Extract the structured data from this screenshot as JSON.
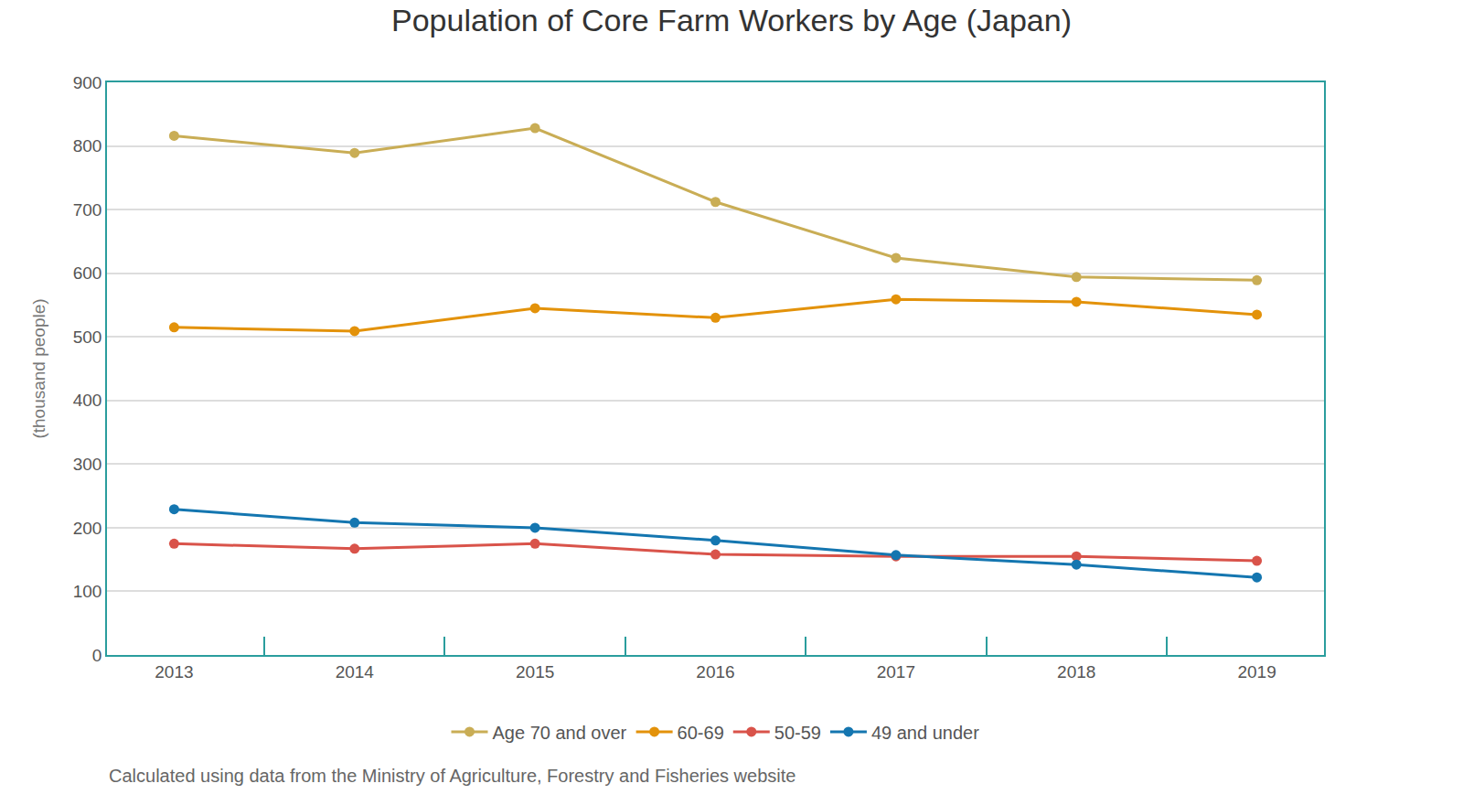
{
  "chart_data": {
    "type": "line",
    "title": "Population of Core Farm Workers by Age (Japan)",
    "y_label": "(thousand people)",
    "source": "Calculated using data from the Ministry of Agriculture, Forestry and Fisheries website",
    "categories": [
      "2013",
      "2014",
      "2015",
      "2016",
      "2017",
      "2018",
      "2019"
    ],
    "series": [
      {
        "name": "Age 70 and over",
        "color": "#c9ad55",
        "values": [
          816,
          789,
          828,
          712,
          624,
          594,
          589
        ]
      },
      {
        "name": "60-69",
        "color": "#e3920a",
        "values": [
          515,
          509,
          545,
          530,
          559,
          555,
          535
        ]
      },
      {
        "name": "50-59",
        "color": "#d9534a",
        "values": [
          175,
          167,
          175,
          158,
          155,
          155,
          148
        ]
      },
      {
        "name": "49 and under",
        "color": "#1476b0",
        "values": [
          229,
          208,
          200,
          180,
          157,
          142,
          122
        ]
      }
    ],
    "ylim": [
      0,
      900
    ],
    "yticks": [
      0,
      100,
      200,
      300,
      400,
      500,
      600,
      700,
      800,
      900
    ],
    "grid": true,
    "legend": "bottom",
    "marker": "circle"
  }
}
